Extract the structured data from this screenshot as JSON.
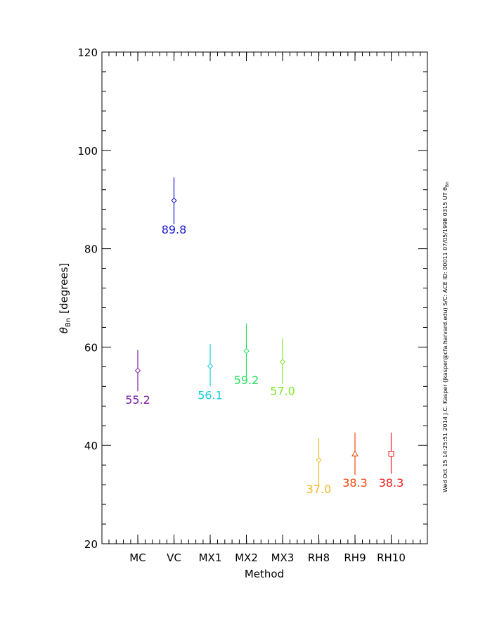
{
  "chart_data": {
    "type": "scatter",
    "categories": [
      "MC",
      "VC",
      "MX1",
      "MX2",
      "MX3",
      "RH8",
      "RH9",
      "RH10"
    ],
    "values": [
      55.2,
      89.8,
      56.1,
      59.2,
      57.0,
      37.0,
      38.3,
      38.3
    ],
    "value_labels": [
      "55.2",
      "89.8",
      "56.1",
      "59.2",
      "57.0",
      "37.0",
      "38.3",
      "38.3"
    ],
    "error_bars": [
      [
        51.0,
        59.4
      ],
      [
        85.0,
        94.5
      ],
      [
        52.0,
        60.6
      ],
      [
        54.0,
        64.8
      ],
      [
        52.5,
        61.8
      ],
      [
        32.0,
        41.5
      ],
      [
        34.0,
        42.6
      ],
      [
        34.2,
        42.6
      ]
    ],
    "markers": [
      "diamond",
      "diamond",
      "diamond",
      "diamond",
      "diamond",
      "diamond",
      "triangle",
      "square"
    ],
    "colors": [
      "#7a1fa0",
      "#1a1ad0",
      "#18d0d8",
      "#28e060",
      "#80e830",
      "#f0b828",
      "#f04a10",
      "#f02020"
    ],
    "xlabel": "Method",
    "ylabel": "θ",
    "ylabel_sub": "Bn",
    "ylabel_units": "[degrees]",
    "ylim": [
      20,
      120
    ],
    "yticks": [
      20,
      40,
      60,
      80,
      100,
      120
    ],
    "grid": false,
    "legend": "none"
  },
  "side_note": {
    "text": "Wed Oct 15 14:25:51 2014  J.C. Kasper (jkasper@cfa.harvard.edu)  S/C: ACE ID: 00011 07/05/1998 0315 UT θ",
    "sub": "Bn"
  }
}
